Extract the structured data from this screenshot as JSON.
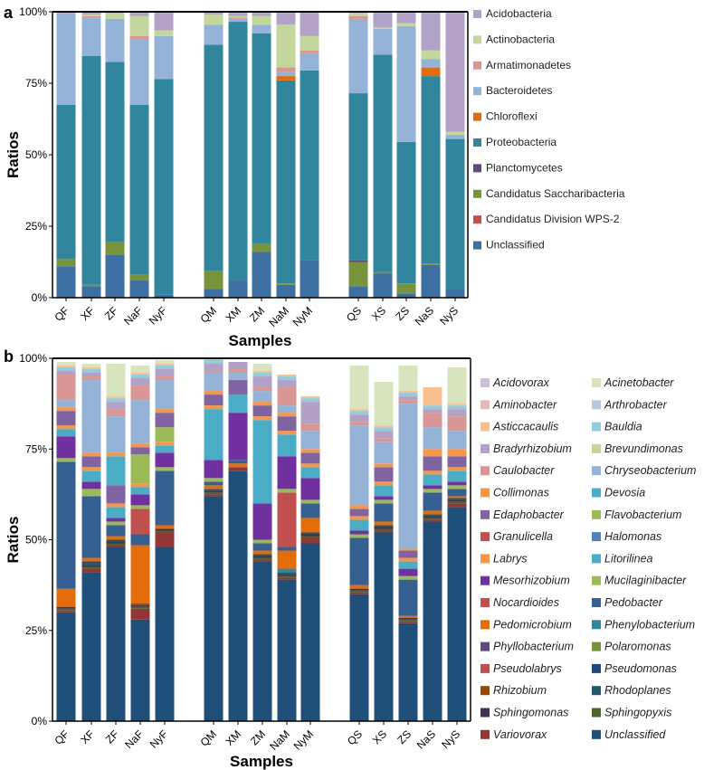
{
  "chart_data": [
    {
      "panel": "a",
      "type": "bar",
      "stacked": true,
      "ylabel": "Ratios",
      "xlabel": "Samples",
      "ylim": [
        0,
        100
      ],
      "yticks": [
        "0%",
        "25%",
        "50%",
        "75%",
        "100%"
      ],
      "categories": [
        "QF",
        "XF",
        "ZF",
        "NaF",
        "NyF",
        "QM",
        "XM",
        "ZM",
        "NaM",
        "NyM",
        "QS",
        "XS",
        "ZS",
        "NaS",
        "NyS"
      ],
      "groups": [
        [
          0,
          1,
          2,
          3,
          4
        ],
        [
          5,
          6,
          7,
          8,
          9
        ],
        [
          10,
          11,
          12,
          13,
          14
        ]
      ],
      "legend_position": "right",
      "series": [
        {
          "name": "Unclassified",
          "color": "#3d6fa3",
          "values": [
            11,
            4,
            15,
            6,
            1,
            3,
            6,
            16,
            4.5,
            13,
            4,
            8.5,
            1.5,
            11.5,
            3
          ]
        },
        {
          "name": "Candidatus Division WPS-2",
          "color": "#c0504d",
          "values": [
            0,
            0,
            0,
            0,
            0,
            0,
            0,
            0,
            0,
            0,
            0,
            0,
            0,
            0,
            0
          ]
        },
        {
          "name": "Candidatus Saccharibacteria",
          "color": "#77933c",
          "values": [
            2.5,
            0.5,
            4.5,
            2,
            0,
            6.5,
            0,
            3,
            0.5,
            0,
            8.5,
            0.5,
            3.5,
            0.5,
            0
          ]
        },
        {
          "name": "Planctomycetes",
          "color": "#604a7b",
          "values": [
            0,
            0,
            0,
            0,
            0,
            0,
            0,
            0,
            0,
            0,
            0.5,
            0,
            0,
            0,
            0
          ]
        },
        {
          "name": "Proteobacteria",
          "color": "#31859c",
          "values": [
            54,
            80,
            63,
            59.5,
            75.5,
            79,
            90.5,
            73.5,
            71,
            66.5,
            58.5,
            76,
            49.5,
            65.5,
            52.5
          ]
        },
        {
          "name": "Chloroflexi",
          "color": "#e46c0a",
          "values": [
            0,
            0,
            0,
            0,
            0,
            0,
            0,
            0,
            1.5,
            0,
            0,
            0,
            0,
            3,
            0
          ]
        },
        {
          "name": "Bacteroidetes",
          "color": "#95b3d7",
          "values": [
            32,
            13.5,
            15,
            23,
            15,
            7,
            1,
            3,
            1.5,
            6,
            26,
            9,
            40.5,
            3,
            1.5
          ]
        },
        {
          "name": "Armatimonadetes",
          "color": "#d99694",
          "values": [
            0,
            0.5,
            0,
            1,
            0,
            0,
            0.5,
            0,
            1.5,
            1,
            1,
            0,
            0,
            0,
            0
          ]
        },
        {
          "name": "Actinobacteria",
          "color": "#c3d69b",
          "values": [
            0,
            0.5,
            2,
            7,
            2,
            3.5,
            0.5,
            3,
            15,
            5,
            1,
            0.5,
            1,
            3,
            1
          ]
        },
        {
          "name": "Acidobacteria",
          "color": "#b3a2c7",
          "values": [
            0.5,
            1,
            0.5,
            1.5,
            6.5,
            1,
            1.5,
            1.5,
            4.5,
            8.5,
            0.5,
            5.5,
            4,
            13.5,
            42
          ]
        }
      ]
    },
    {
      "panel": "b",
      "type": "bar",
      "stacked": true,
      "ylabel": "Ratios",
      "xlabel": "Samples",
      "ylim": [
        0,
        100
      ],
      "yticks": [
        "0%",
        "25%",
        "50%",
        "75%",
        "100%"
      ],
      "categories": [
        "QF",
        "XF",
        "ZF",
        "NaF",
        "NyF",
        "QM",
        "XM",
        "ZM",
        "NaM",
        "NyM",
        "QS",
        "XS",
        "ZS",
        "NaS",
        "NyS"
      ],
      "groups": [
        [
          0,
          1,
          2,
          3,
          4
        ],
        [
          5,
          6,
          7,
          8,
          9
        ],
        [
          10,
          11,
          12,
          13,
          14
        ]
      ],
      "legend_position": "right",
      "series": [
        {
          "name": "Unclassified",
          "color": "#1f4e79",
          "values": [
            30,
            41,
            48,
            28,
            48,
            62,
            69,
            44,
            39,
            49,
            35,
            52,
            27,
            55,
            59
          ]
        },
        {
          "name": "Variovorax",
          "color": "#943634",
          "values": [
            0.5,
            1,
            0.5,
            3,
            4,
            0.5,
            1,
            0.5,
            0.5,
            1.5,
            0.5,
            0.5,
            0.5,
            0.5,
            1
          ]
        },
        {
          "name": "Sphingopyxis",
          "color": "#4f6228",
          "values": [
            0.5,
            0.5,
            0.5,
            0.5,
            0.5,
            0.5,
            0,
            0.5,
            0.5,
            0.5,
            0.5,
            0.5,
            0.5,
            0.5,
            0.5
          ]
        },
        {
          "name": "Sphingomonas",
          "color": "#3f3151",
          "values": [
            0.5,
            0.5,
            0.5,
            0.5,
            0.5,
            0.5,
            0,
            0.5,
            0.5,
            0.5,
            0.5,
            0.5,
            0.5,
            0.5,
            0.5
          ]
        },
        {
          "name": "Rhodoplanes",
          "color": "#215968",
          "values": [
            0,
            0.5,
            0.5,
            0,
            0,
            0.5,
            0,
            0.5,
            0.5,
            0.5,
            0,
            0.5,
            0,
            0.5,
            0.5
          ]
        },
        {
          "name": "Rhizobium",
          "color": "#974806",
          "values": [
            0,
            0,
            0,
            0.5,
            0,
            0,
            0,
            0,
            0,
            0,
            0,
            0,
            0,
            0,
            0
          ]
        },
        {
          "name": "Pseudomonas",
          "color": "#1f497d",
          "values": [
            0,
            0.5,
            0,
            0,
            0,
            0,
            0,
            0,
            0,
            0,
            0,
            0,
            0,
            0,
            0
          ]
        },
        {
          "name": "Pseudolabrys",
          "color": "#c0504d",
          "values": [
            0,
            0,
            0,
            0,
            0,
            0,
            0,
            0,
            0,
            0,
            0,
            0,
            0,
            0,
            0
          ]
        },
        {
          "name": "Polaromonas",
          "color": "#76933c",
          "values": [
            0,
            0,
            0,
            0,
            0,
            0,
            0,
            0,
            0,
            0,
            0,
            0,
            0,
            0,
            0
          ]
        },
        {
          "name": "Phyllobacterium",
          "color": "#5f497a",
          "values": [
            0,
            0,
            0,
            0,
            0,
            0,
            0,
            0,
            0,
            0,
            0,
            0,
            0,
            0,
            0
          ]
        },
        {
          "name": "Phenylobacterium",
          "color": "#31859c",
          "values": [
            0,
            0,
            0,
            0,
            0,
            0,
            0,
            0,
            1,
            0,
            0,
            0,
            0,
            0,
            0
          ]
        },
        {
          "name": "Pedomicrobium",
          "color": "#e46c0a",
          "values": [
            5,
            1,
            1,
            16,
            1,
            1,
            1,
            1,
            5,
            4,
            1,
            1,
            0.5,
            1,
            0.5
          ]
        },
        {
          "name": "Pedobacter",
          "color": "#376092",
          "values": [
            35,
            17,
            3,
            3,
            15,
            1,
            1,
            2,
            1,
            4,
            13,
            5,
            10,
            5,
            2
          ]
        },
        {
          "name": "Nocardioides",
          "color": "#c0504d",
          "values": [
            0,
            0,
            0,
            7,
            0,
            0,
            0,
            0,
            15,
            0,
            0,
            0,
            0,
            0,
            0
          ]
        },
        {
          "name": "Mucilaginibacter",
          "color": "#9bbb59",
          "values": [
            1,
            2,
            1,
            1,
            1,
            1,
            0,
            1,
            1,
            1,
            1,
            1,
            1,
            1,
            1
          ]
        },
        {
          "name": "Mesorhizobium",
          "color": "#7030a0",
          "values": [
            6,
            2,
            1,
            3,
            4,
            5,
            13,
            10,
            9,
            6,
            1,
            1,
            2,
            1,
            1
          ]
        },
        {
          "name": "Litorilinea",
          "color": "#4bacc6",
          "values": [
            2,
            3,
            3,
            2,
            2,
            14,
            5,
            23,
            6,
            3,
            3,
            3,
            2,
            3,
            3
          ]
        },
        {
          "name": "Labrys",
          "color": "#f79646",
          "values": [
            1,
            1,
            1,
            1,
            1,
            1,
            0,
            1,
            1,
            1,
            1,
            1,
            1,
            1,
            1
          ]
        },
        {
          "name": "Halomonas",
          "color": "#4f81bd",
          "values": [
            0,
            0,
            0,
            0,
            0,
            0,
            0,
            0,
            0,
            0,
            0,
            0,
            0,
            0,
            0
          ]
        },
        {
          "name": "Granulicella",
          "color": "#c0504d",
          "values": [
            0,
            0,
            0,
            0,
            0,
            0,
            0,
            0,
            0,
            0,
            0,
            0,
            0,
            0,
            0
          ]
        },
        {
          "name": "Flavobacterium",
          "color": "#9bbb59",
          "values": [
            0,
            0,
            0,
            8,
            4,
            0,
            0,
            0,
            0,
            0,
            0,
            0,
            0,
            0,
            0
          ]
        },
        {
          "name": "Edaphobacter",
          "color": "#8064a2",
          "values": [
            4,
            3,
            5,
            2,
            4,
            3,
            4,
            3,
            4,
            3,
            2,
            4,
            2,
            4,
            3
          ]
        },
        {
          "name": "Devosia",
          "color": "#4bacc6",
          "values": [
            0,
            0,
            8,
            0,
            0,
            0,
            0,
            0,
            0,
            0,
            0,
            0,
            0,
            0,
            0
          ]
        },
        {
          "name": "Collimonas",
          "color": "#f79646",
          "values": [
            1,
            1,
            1,
            1,
            1,
            1,
            0,
            1,
            1,
            1,
            1,
            1,
            0.5,
            2,
            2
          ]
        },
        {
          "name": "Chryseobacterium",
          "color": "#95b3d7",
          "values": [
            2,
            20,
            10,
            12,
            8,
            5,
            2,
            3,
            2,
            5,
            22,
            6,
            40,
            6,
            5
          ]
        },
        {
          "name": "Caulobacter",
          "color": "#d99694",
          "values": [
            7,
            1,
            2,
            4,
            1,
            0.5,
            1,
            1,
            5,
            2,
            1,
            1,
            1,
            4,
            4
          ]
        },
        {
          "name": "Brevundimonas",
          "color": "#c3d69b",
          "values": [
            0,
            0,
            0,
            0,
            0,
            0,
            0,
            0,
            0,
            0,
            0,
            0,
            0,
            0,
            0
          ]
        },
        {
          "name": "Bradyrhizobium",
          "color": "#b2a1c7",
          "values": [
            1,
            1,
            2,
            2,
            2,
            2,
            2,
            3,
            2,
            6,
            2,
            2,
            1,
            1,
            2
          ]
        },
        {
          "name": "Bauldia",
          "color": "#92cddc",
          "values": [
            1,
            1,
            1,
            1,
            1,
            1,
            0,
            1,
            1,
            1,
            1,
            1,
            1,
            1,
            1
          ]
        },
        {
          "name": "Asticcacaulis",
          "color": "#fabf8f",
          "values": [
            0.5,
            0.5,
            0.5,
            0.5,
            0.5,
            0.5,
            0,
            0.5,
            0.5,
            0.5,
            0.5,
            0.5,
            0.5,
            5,
            0.5
          ]
        },
        {
          "name": "Arthrobacter",
          "color": "#b7c9e2",
          "values": [
            0,
            0,
            0,
            0,
            0,
            0,
            0,
            0,
            0,
            0,
            0,
            0,
            0,
            0,
            0
          ]
        },
        {
          "name": "Aminobacter",
          "color": "#e6b9b8",
          "values": [
            0,
            0,
            0,
            0,
            0,
            0,
            0,
            0,
            0,
            0,
            0,
            0,
            0,
            0,
            0
          ]
        },
        {
          "name": "Acinetobacter",
          "color": "#d7e4bd",
          "values": [
            1,
            1,
            9,
            2,
            1,
            0,
            0,
            2,
            0,
            0,
            12,
            12,
            7,
            0,
            10
          ]
        },
        {
          "name": "Acidovorax",
          "color": "#ccc1da",
          "values": [
            0,
            0,
            0,
            0,
            0,
            0,
            0,
            0,
            0,
            0,
            0,
            0,
            0,
            0,
            0
          ]
        }
      ],
      "legend_order": [
        "Acidovorax",
        "Acinetobacter",
        "Aminobacter",
        "Arthrobacter",
        "Asticcacaulis",
        "Bauldia",
        "Bradyrhizobium",
        "Brevundimonas",
        "Caulobacter",
        "Chryseobacterium",
        "Collimonas",
        "Devosia",
        "Edaphobacter",
        "Flavobacterium",
        "Granulicella",
        "Halomonas",
        "Labrys",
        "Litorilinea",
        "Mesorhizobium",
        "Mucilaginibacter",
        "Nocardioides",
        "Pedobacter",
        "Pedomicrobium",
        "Phenylobacterium",
        "Phyllobacterium",
        "Polaromonas",
        "Pseudolabrys",
        "Pseudomonas",
        "Rhizobium",
        "Rhodoplanes",
        "Sphingomonas",
        "Sphingopyxis",
        "Variovorax",
        "Unclassified"
      ]
    }
  ]
}
